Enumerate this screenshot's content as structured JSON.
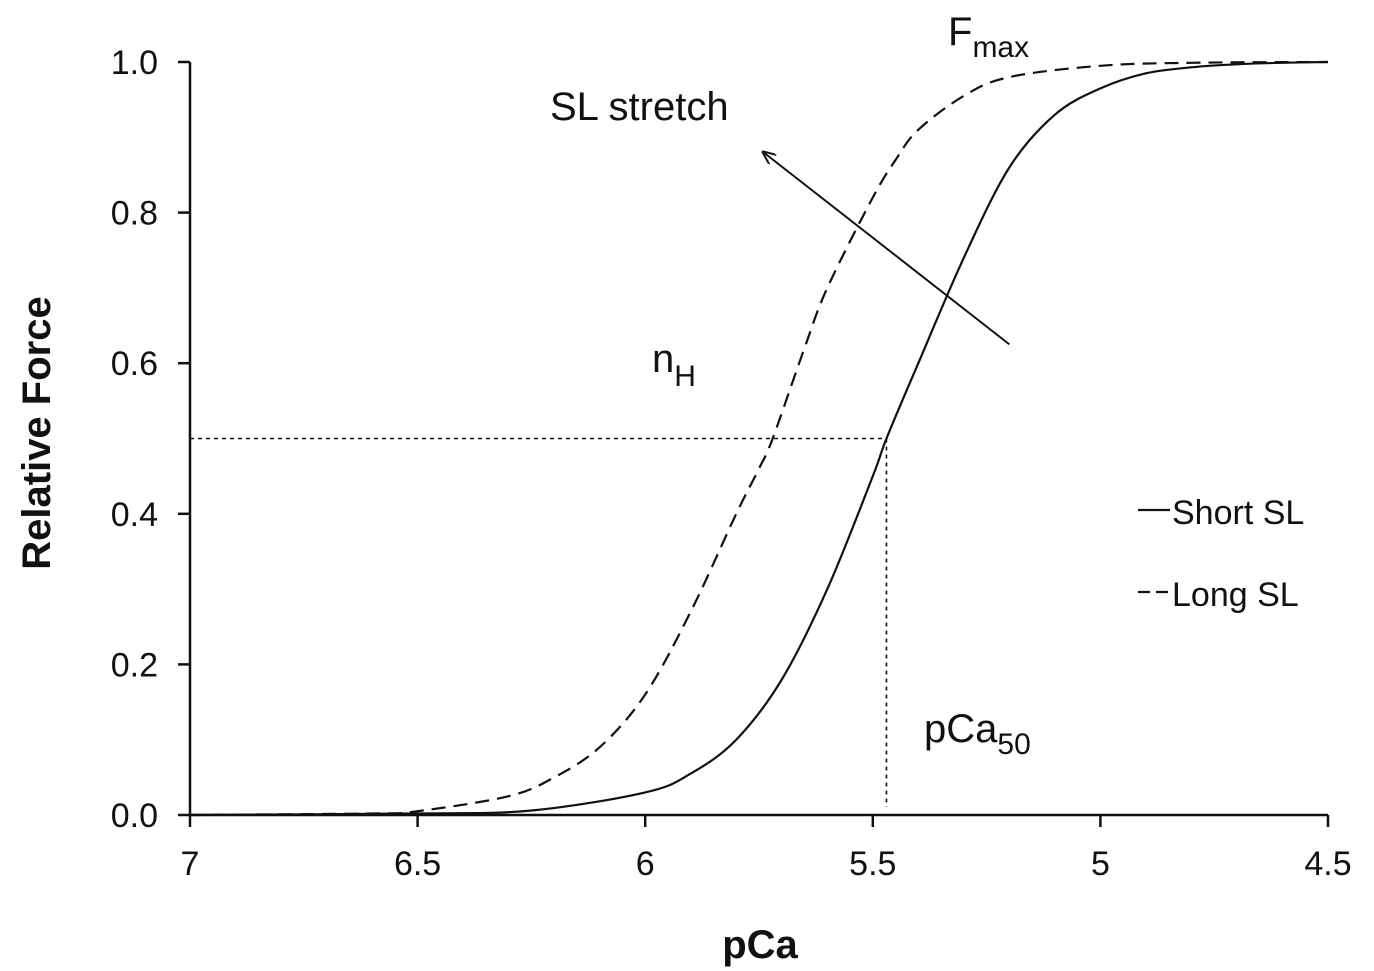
{
  "chart_data": {
    "type": "line",
    "xlabel": "pCa",
    "ylabel": "Relative Force",
    "xlim": [
      7,
      4.5
    ],
    "ylim": [
      0,
      1
    ],
    "x_reversed": true,
    "x_ticks": [
      7,
      6.5,
      6,
      5.5,
      5,
      4.5
    ],
    "x_tick_labels": [
      "7",
      "6.5",
      "6",
      "5.5",
      "5",
      "4.5"
    ],
    "y_ticks": [
      0,
      0.2,
      0.4,
      0.6,
      0.8,
      1.0
    ],
    "y_tick_labels": [
      "0.0",
      "0.2",
      "0.4",
      "0.6",
      "0.8",
      "1.0"
    ],
    "grid": false,
    "legend_position": "right",
    "series": [
      {
        "name": "Short SL",
        "line_style": "solid",
        "x": [
          7.0,
          6.5,
          6.25,
          6.0,
          5.9,
          5.8,
          5.7,
          5.6,
          5.5,
          5.47,
          5.4,
          5.3,
          5.2,
          5.1,
          5.0,
          4.9,
          4.8,
          4.7,
          4.6,
          4.5
        ],
        "y": [
          0.0,
          0.002,
          0.006,
          0.03,
          0.055,
          0.1,
          0.18,
          0.3,
          0.45,
          0.5,
          0.6,
          0.74,
          0.86,
          0.93,
          0.965,
          0.985,
          0.993,
          0.997,
          0.999,
          1.0
        ]
      },
      {
        "name": "Long SL",
        "line_style": "dashed",
        "x": [
          7.0,
          6.6,
          6.5,
          6.3,
          6.2,
          6.1,
          6.0,
          5.9,
          5.8,
          5.75,
          5.72,
          5.65,
          5.6,
          5.5,
          5.45,
          5.4,
          5.3,
          5.2,
          5.0,
          4.8,
          4.5
        ],
        "y": [
          0.0,
          0.002,
          0.005,
          0.025,
          0.05,
          0.09,
          0.16,
          0.27,
          0.4,
          0.46,
          0.5,
          0.62,
          0.7,
          0.82,
          0.87,
          0.91,
          0.955,
          0.98,
          0.995,
          0.999,
          1.0
        ]
      }
    ],
    "reference_lines": {
      "half_max_force": 0.5,
      "pca50": 5.47
    },
    "annotations": {
      "fmax": {
        "text": "F",
        "sub": "max"
      },
      "stretch": {
        "text": "SL stretch"
      },
      "nh": {
        "text": "n",
        "sub": "H"
      },
      "pca50": {
        "text": "pCa",
        "sub": "50"
      }
    },
    "stretch_arrow": {
      "from": [
        5.2,
        0.625
      ],
      "to": [
        5.74,
        0.88
      ]
    },
    "line_color": "#111111"
  }
}
